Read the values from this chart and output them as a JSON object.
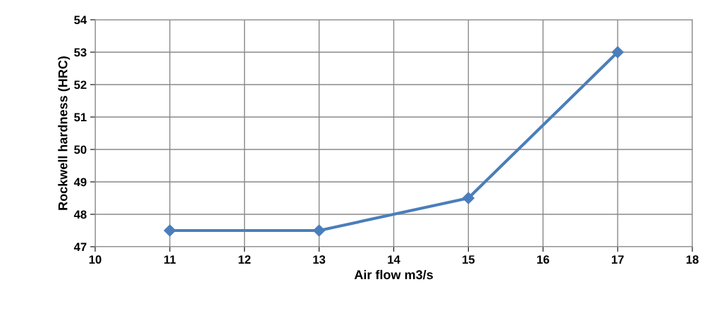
{
  "chart_data": {
    "type": "line",
    "xlabel": "Air flow m3/s",
    "ylabel": "Rockwell hardness (HRC)",
    "x": [
      11,
      13,
      15,
      17
    ],
    "series": [
      {
        "color": "#4a7ebb",
        "values": [
          47.5,
          47.5,
          48.5,
          53
        ]
      }
    ],
    "xlim": [
      10,
      18
    ],
    "xticks": [
      10,
      11,
      12,
      13,
      14,
      15,
      16,
      17,
      18
    ],
    "ylim": [
      47,
      54
    ],
    "yticks": [
      47,
      48,
      49,
      50,
      51,
      52,
      53,
      54
    ],
    "grid": true,
    "marker": "diamond",
    "line_style": "solid"
  }
}
